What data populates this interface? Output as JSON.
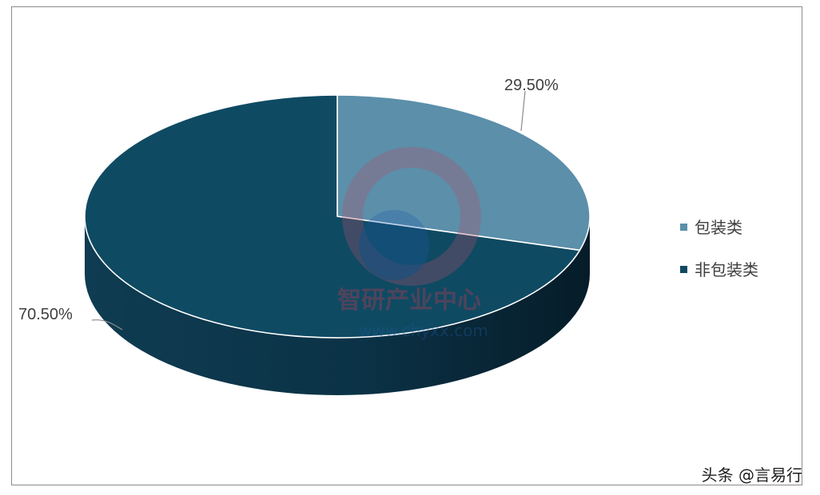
{
  "chart_data": {
    "type": "pie",
    "style": "3d",
    "categories": [
      "包装类",
      "非包装类"
    ],
    "values": [
      29.5,
      70.5
    ],
    "labels": [
      "29.50%",
      "70.50%"
    ],
    "colors": [
      "#5b8faa",
      "#0f4a63"
    ],
    "legend_position": "right"
  },
  "watermark": {
    "cn_text": "智研产业中心",
    "url_text": "www.chyxx.com"
  },
  "footer": {
    "credit": "头条 @言易行"
  }
}
